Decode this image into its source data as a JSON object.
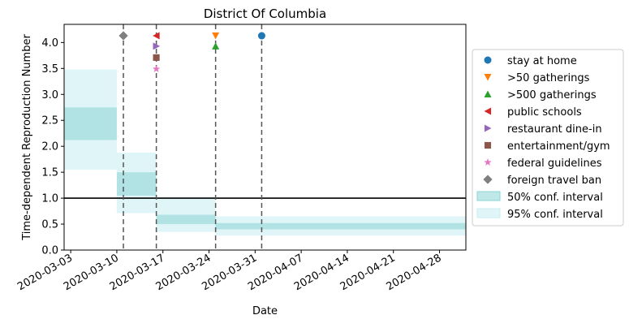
{
  "chart_data": {
    "type": "line",
    "title": "District Of Columbia",
    "xlabel": "Date",
    "ylabel": "Time-dependent Reproduction Number",
    "xlim": [
      "2020-03-02",
      "2020-05-02"
    ],
    "ylim": [
      0,
      4.35
    ],
    "x_ticks": [
      "2020-03-03",
      "2020-03-10",
      "2020-03-17",
      "2020-03-24",
      "2020-03-31",
      "2020-04-07",
      "2020-04-14",
      "2020-04-21",
      "2020-04-28"
    ],
    "y_ticks": [
      0.0,
      0.5,
      1.0,
      1.5,
      2.0,
      2.5,
      3.0,
      3.5,
      4.0
    ],
    "y_tick_labels": [
      "0.0",
      "0.5",
      "1.0",
      "1.5",
      "2.0",
      "2.5",
      "3.0",
      "3.5",
      "4.0"
    ],
    "reference_line": {
      "y": 1.0,
      "color": "#000000"
    },
    "ci50": {
      "label": "50% conf. interval",
      "color": "#8dd3d6",
      "segments": [
        {
          "start": "2020-03-02",
          "end": "2020-03-10",
          "low": 2.12,
          "high": 2.75
        },
        {
          "start": "2020-03-10",
          "end": "2020-03-16",
          "low": 1.05,
          "high": 1.5
        },
        {
          "start": "2020-03-16",
          "end": "2020-03-25",
          "low": 0.5,
          "high": 0.68
        },
        {
          "start": "2020-03-25",
          "end": "2020-05-02",
          "low": 0.4,
          "high": 0.52
        }
      ]
    },
    "ci95": {
      "label": "95% conf. interval",
      "color": "#c9eff2",
      "segments": [
        {
          "start": "2020-03-02",
          "end": "2020-03-10",
          "low": 1.55,
          "high": 3.48
        },
        {
          "start": "2020-03-10",
          "end": "2020-03-16",
          "low": 0.71,
          "high": 1.88
        },
        {
          "start": "2020-03-16",
          "end": "2020-03-25",
          "low": 0.35,
          "high": 1.02
        },
        {
          "start": "2020-03-25",
          "end": "2020-05-02",
          "low": 0.28,
          "high": 0.65
        }
      ]
    },
    "interventions": [
      {
        "label": "stay at home",
        "date": "2020-04-01",
        "y": 4.13,
        "marker": "circle",
        "color": "#1f77b4"
      },
      {
        "label": ">50 gatherings",
        "date": "2020-03-25",
        "y": 4.13,
        "marker": "triangle-down",
        "color": "#ff7f0e"
      },
      {
        "label": ">500 gatherings",
        "date": "2020-03-25",
        "y": 3.93,
        "marker": "triangle-up",
        "color": "#2ca02c"
      },
      {
        "label": "public schools",
        "date": "2020-03-16",
        "y": 4.13,
        "marker": "triangle-left",
        "color": "#d62728"
      },
      {
        "label": "restaurant dine-in",
        "date": "2020-03-16",
        "y": 3.93,
        "marker": "triangle-right",
        "color": "#9467bd"
      },
      {
        "label": "entertainment/gym",
        "date": "2020-03-16",
        "y": 3.71,
        "marker": "square",
        "color": "#8c564b"
      },
      {
        "label": "federal guidelines",
        "date": "2020-03-16",
        "y": 3.49,
        "marker": "star",
        "color": "#e377c2"
      },
      {
        "label": "foreign travel ban",
        "date": "2020-03-11",
        "y": 4.13,
        "marker": "diamond",
        "color": "#7f7f7f"
      }
    ],
    "vlines": [
      "2020-03-11",
      "2020-03-16",
      "2020-03-25",
      "2020-04-01"
    ],
    "vline_color": "#555555",
    "legend_position": "right, outside plot"
  }
}
